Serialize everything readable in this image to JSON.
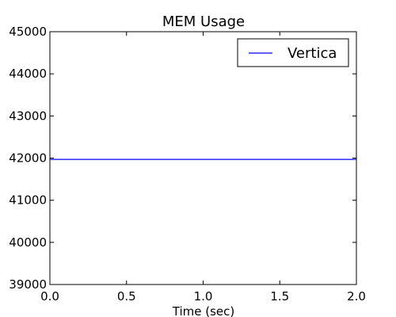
{
  "chart_data": {
    "type": "line",
    "title": "MEM Usage",
    "xlabel": "Time (sec)",
    "ylabel": "",
    "xlim": [
      0.0,
      2.0
    ],
    "ylim": [
      39000,
      45000
    ],
    "x_ticks": [
      0.0,
      0.5,
      1.0,
      1.5,
      2.0
    ],
    "x_tick_labels": [
      "0.0",
      "0.5",
      "1.0",
      "1.5",
      "2.0"
    ],
    "y_ticks": [
      39000,
      40000,
      41000,
      42000,
      43000,
      44000,
      45000
    ],
    "y_tick_labels": [
      "39000",
      "40000",
      "41000",
      "42000",
      "43000",
      "44000",
      "45000"
    ],
    "grid": false,
    "legend_position": "top-right",
    "series": [
      {
        "name": "Vertica",
        "color": "#0000ff",
        "x": [
          0.0,
          2.0
        ],
        "y": [
          41970,
          41970
        ]
      }
    ]
  }
}
